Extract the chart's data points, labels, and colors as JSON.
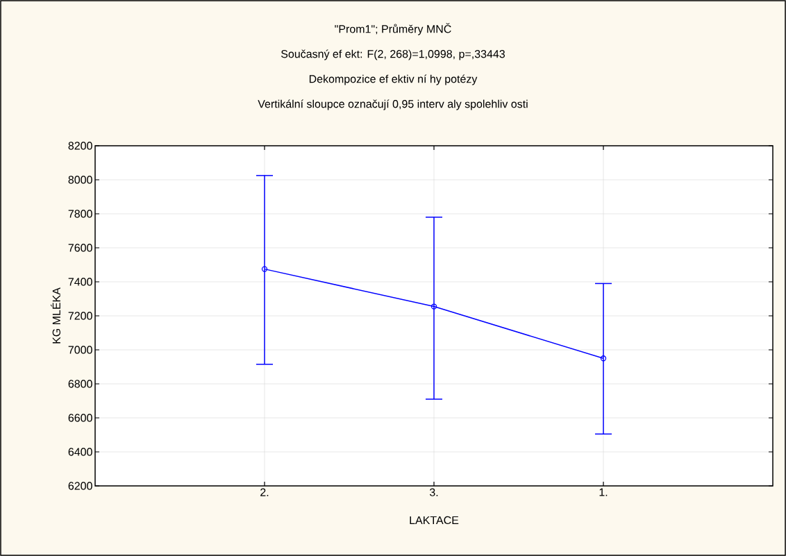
{
  "chart_data": {
    "type": "line",
    "title": "\"Prom1\"; Průměry MNČ",
    "subtitle": "Současný ef ekt: F(2, 268)=1,0998, p=,33443",
    "annotations": [
      "Dekompozice ef ektiv ní hy potézy",
      "Vertikální sloupce označují 0,95 interv aly spolehliv osti"
    ],
    "xlabel": "LAKTACE",
    "ylabel": "KG MLÉKA",
    "categories": [
      "2.",
      "3.",
      "1."
    ],
    "series": [
      {
        "color": "#0000ff",
        "values": [
          7475,
          7255,
          6950
        ],
        "errors": [
          [
            6915,
            8025
          ],
          [
            6710,
            7780
          ],
          [
            6505,
            7390
          ]
        ]
      }
    ],
    "ylim": [
      6200,
      8200
    ],
    "yticks": [
      6200,
      6400,
      6600,
      6800,
      7000,
      7200,
      7400,
      7600,
      7800,
      8000,
      8200
    ],
    "grid": true,
    "marker": "circle",
    "line_style": "solid"
  }
}
